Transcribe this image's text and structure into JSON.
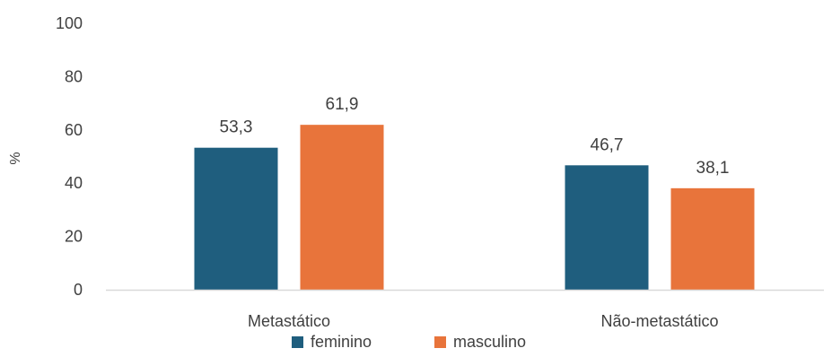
{
  "chart_data": {
    "type": "bar",
    "categories": [
      "Metastático",
      "Não-metastático"
    ],
    "series": [
      {
        "name": "feminino",
        "values": [
          53.3,
          46.7
        ],
        "labels": [
          "53,3",
          "46,7"
        ],
        "color": "#1f5e7e"
      },
      {
        "name": "masculino",
        "values": [
          61.9,
          38.1
        ],
        "labels": [
          "61,9",
          "38,1"
        ],
        "color": "#e8743b"
      }
    ],
    "ylabel": "%",
    "ylim": [
      0,
      100
    ],
    "yticks": [
      0,
      20,
      40,
      60,
      80,
      100
    ],
    "grid": false,
    "legend": "bottom"
  }
}
